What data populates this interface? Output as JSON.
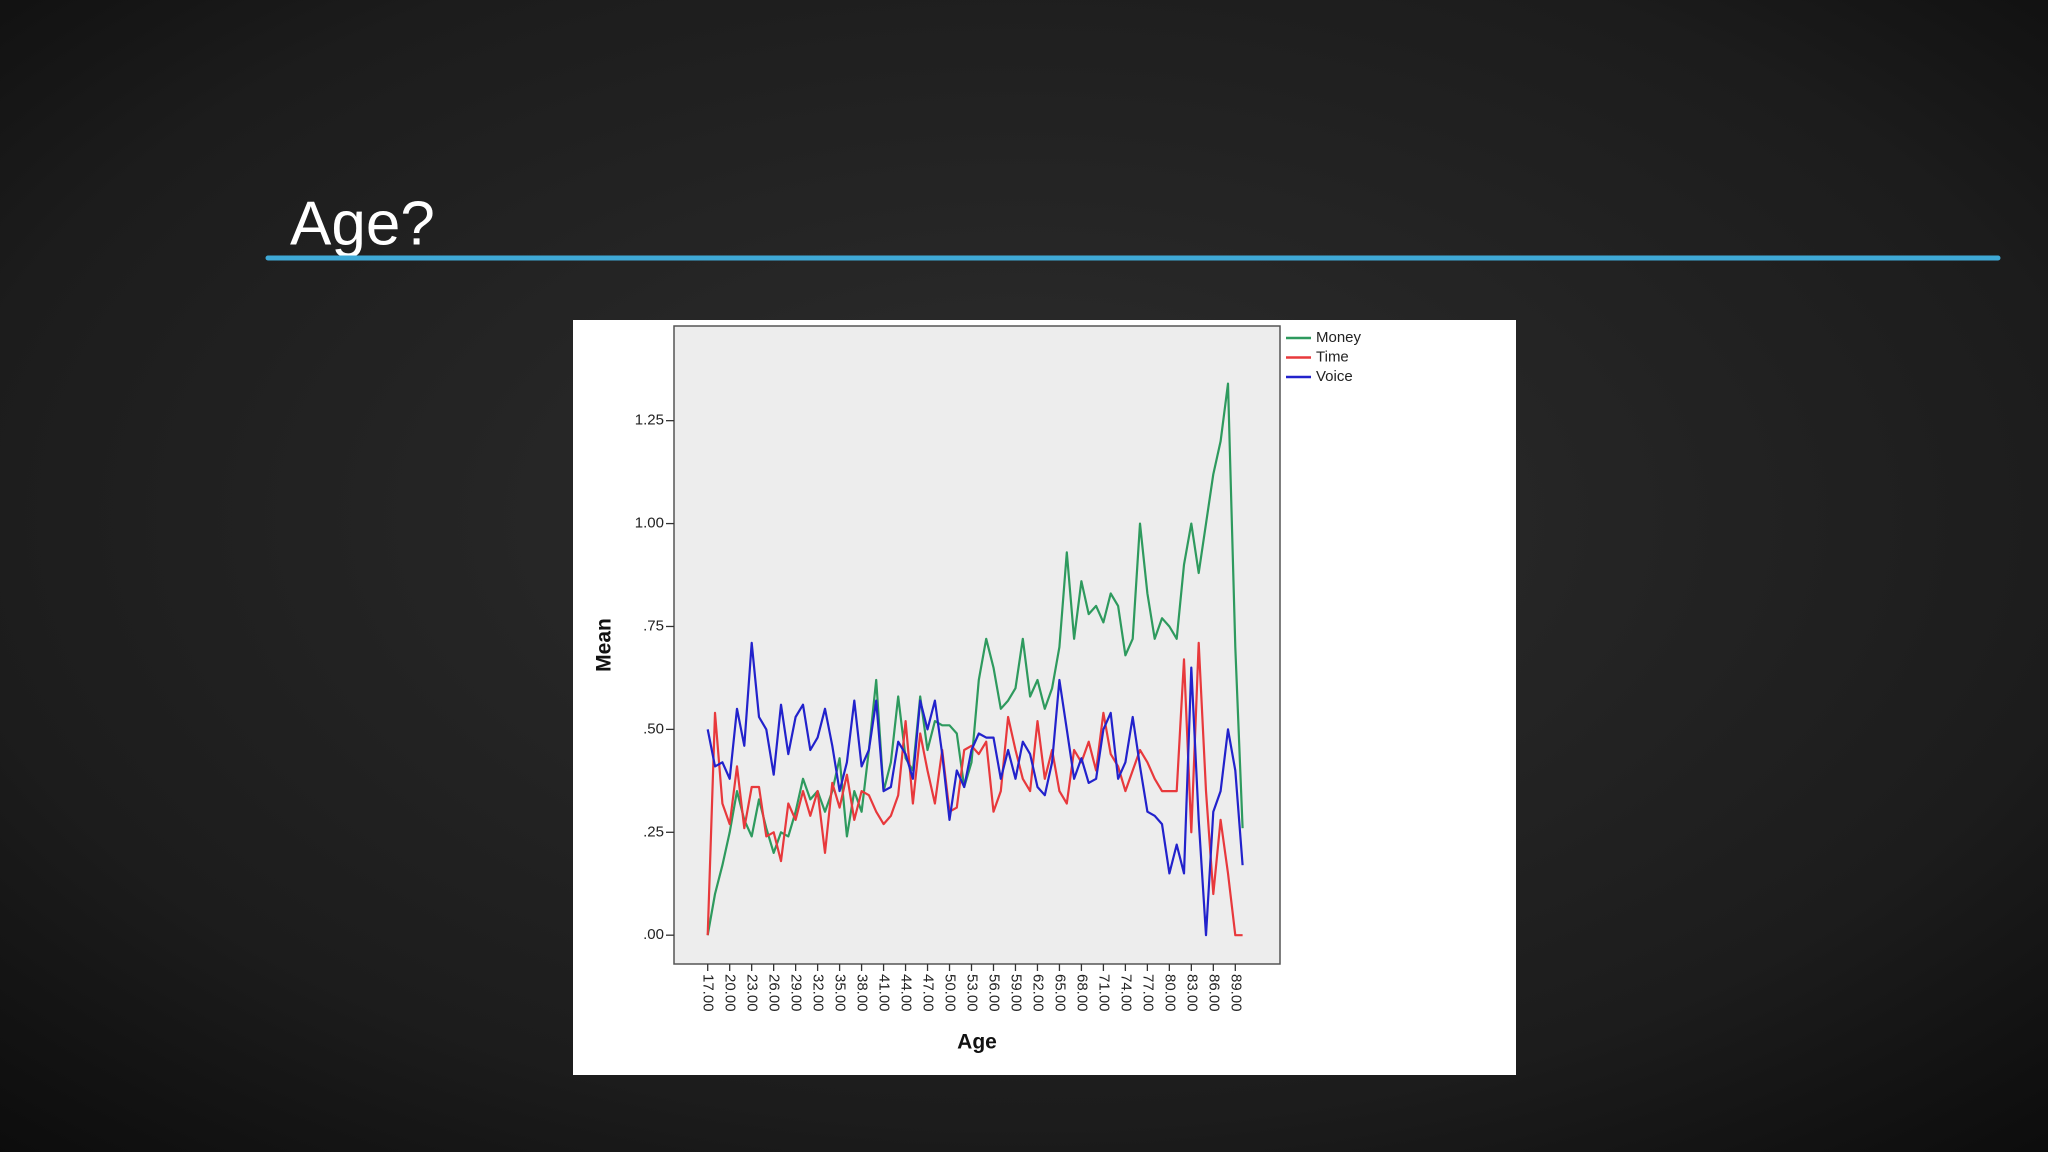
{
  "chart_data": {
    "type": "line",
    "title": "Age?",
    "x_label": "Age",
    "y_label": "Mean",
    "x": [
      17,
      18,
      19,
      20,
      21,
      22,
      23,
      24,
      25,
      26,
      27,
      28,
      29,
      30,
      31,
      32,
      33,
      34,
      35,
      36,
      37,
      38,
      39,
      40,
      41,
      42,
      43,
      44,
      45,
      46,
      47,
      48,
      49,
      50,
      51,
      52,
      53,
      54,
      55,
      56,
      57,
      58,
      59,
      60,
      61,
      62,
      63,
      64,
      65,
      66,
      67,
      68,
      69,
      70,
      71,
      72,
      73,
      74,
      75,
      76,
      77,
      78,
      79,
      80,
      81,
      82,
      83,
      84,
      85,
      86,
      87,
      88,
      89,
      90
    ],
    "series": [
      {
        "name": "Money",
        "color": "#2e9a5e",
        "values": [
          0.0,
          0.1,
          0.17,
          0.25,
          0.35,
          0.28,
          0.24,
          0.33,
          0.26,
          0.2,
          0.25,
          0.24,
          0.3,
          0.38,
          0.33,
          0.35,
          0.3,
          0.35,
          0.43,
          0.24,
          0.35,
          0.3,
          0.45,
          0.62,
          0.35,
          0.42,
          0.58,
          0.43,
          0.4,
          0.58,
          0.45,
          0.52,
          0.51,
          0.51,
          0.49,
          0.36,
          0.42,
          0.62,
          0.72,
          0.65,
          0.55,
          0.57,
          0.6,
          0.72,
          0.58,
          0.62,
          0.55,
          0.6,
          0.7,
          0.93,
          0.72,
          0.86,
          0.78,
          0.8,
          0.76,
          0.83,
          0.8,
          0.68,
          0.72,
          1.0,
          0.83,
          0.72,
          0.77,
          0.75,
          0.72,
          0.9,
          1.0,
          0.88,
          1.0,
          1.12,
          1.2,
          1.34,
          0.7,
          0.26
        ]
      },
      {
        "name": "Time",
        "color": "#e8393c",
        "values": [
          0.0,
          0.54,
          0.32,
          0.27,
          0.41,
          0.26,
          0.36,
          0.36,
          0.24,
          0.25,
          0.18,
          0.32,
          0.28,
          0.35,
          0.29,
          0.35,
          0.2,
          0.37,
          0.31,
          0.39,
          0.28,
          0.35,
          0.34,
          0.3,
          0.27,
          0.29,
          0.34,
          0.52,
          0.32,
          0.49,
          0.4,
          0.32,
          0.45,
          0.3,
          0.31,
          0.45,
          0.46,
          0.44,
          0.47,
          0.3,
          0.35,
          0.53,
          0.45,
          0.38,
          0.35,
          0.52,
          0.38,
          0.45,
          0.35,
          0.32,
          0.45,
          0.42,
          0.47,
          0.4,
          0.54,
          0.44,
          0.41,
          0.35,
          0.4,
          0.45,
          0.42,
          0.38,
          0.35,
          0.35,
          0.35,
          0.67,
          0.25,
          0.71,
          0.35,
          0.1,
          0.28,
          0.15,
          0.0,
          0.0
        ]
      },
      {
        "name": "Voice",
        "color": "#2222cc",
        "values": [
          0.5,
          0.41,
          0.42,
          0.38,
          0.55,
          0.46,
          0.71,
          0.53,
          0.5,
          0.39,
          0.56,
          0.44,
          0.53,
          0.56,
          0.45,
          0.48,
          0.55,
          0.46,
          0.35,
          0.42,
          0.57,
          0.41,
          0.45,
          0.57,
          0.35,
          0.36,
          0.47,
          0.44,
          0.38,
          0.57,
          0.5,
          0.57,
          0.44,
          0.28,
          0.4,
          0.36,
          0.45,
          0.49,
          0.48,
          0.48,
          0.38,
          0.45,
          0.38,
          0.47,
          0.44,
          0.36,
          0.34,
          0.42,
          0.62,
          0.5,
          0.38,
          0.43,
          0.37,
          0.38,
          0.5,
          0.54,
          0.38,
          0.42,
          0.53,
          0.41,
          0.3,
          0.29,
          0.27,
          0.15,
          0.22,
          0.15,
          0.65,
          0.28,
          0.0,
          0.3,
          0.35,
          0.5,
          0.4,
          0.17
        ]
      }
    ],
    "xlim": [
      12.4,
      95.1
    ],
    "ylim": [
      -0.07,
      1.48
    ],
    "xticks": [
      {
        "value": 17,
        "label": "17.00"
      },
      {
        "value": 20,
        "label": "20.00"
      },
      {
        "value": 23,
        "label": "23.00"
      },
      {
        "value": 26,
        "label": "26.00"
      },
      {
        "value": 29,
        "label": "29.00"
      },
      {
        "value": 32,
        "label": "32.00"
      },
      {
        "value": 35,
        "label": "35.00"
      },
      {
        "value": 38,
        "label": "38.00"
      },
      {
        "value": 41,
        "label": "41.00"
      },
      {
        "value": 44,
        "label": "44.00"
      },
      {
        "value": 47,
        "label": "47.00"
      },
      {
        "value": 50,
        "label": "50.00"
      },
      {
        "value": 53,
        "label": "53.00"
      },
      {
        "value": 56,
        "label": "56.00"
      },
      {
        "value": 59,
        "label": "59.00"
      },
      {
        "value": 62,
        "label": "62.00"
      },
      {
        "value": 65,
        "label": "65.00"
      },
      {
        "value": 68,
        "label": "68.00"
      },
      {
        "value": 71,
        "label": "71.00"
      },
      {
        "value": 74,
        "label": "74.00"
      },
      {
        "value": 77,
        "label": "77.00"
      },
      {
        "value": 80,
        "label": "80.00"
      },
      {
        "value": 83,
        "label": "83.00"
      },
      {
        "value": 86,
        "label": "86.00"
      },
      {
        "value": 89,
        "label": "89.00"
      }
    ],
    "yticks": [
      {
        "value": 0,
        "label": ".00"
      },
      {
        "value": 0.25,
        "label": ".25"
      },
      {
        "value": 0.5,
        "label": ".50"
      },
      {
        "value": 0.75,
        "label": ".75"
      },
      {
        "value": 1,
        "label": "1.00"
      },
      {
        "value": 1.25,
        "label": "1.25"
      }
    ],
    "legend": "outside-right-top"
  }
}
